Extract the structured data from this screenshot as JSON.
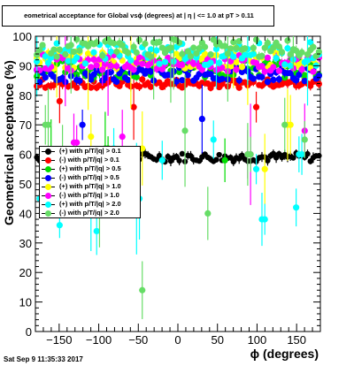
{
  "header": {
    "title": "eometrical acceptance for Global vsϕ (degrees) at | η | <= 1.0 at pT > 0.11"
  },
  "footer": {
    "timestamp": "Sat Sep  9 11:35:33 2017"
  },
  "chart_data": {
    "type": "scatter",
    "title": "eometrical acceptance for Global vsϕ (degrees) at | η | <= 1.0 at pT > 0.11",
    "xlabel": "ϕ (degrees)",
    "ylabel": "Geometrical acceptance (%)",
    "xlim": [
      -180,
      180
    ],
    "ylim": [
      0,
      100
    ],
    "xticks": [
      -150,
      -100,
      -50,
      0,
      50,
      100,
      150
    ],
    "yticks": [
      0,
      10,
      20,
      30,
      40,
      50,
      60,
      70,
      80,
      90,
      100
    ],
    "legend_position": "left",
    "series": [
      {
        "name": "(+) with p/T/|q| > 0.1",
        "color": "#000000",
        "base": 59,
        "spread": 1.5,
        "dips": []
      },
      {
        "name": "(-) with p/T/|q| > 0.1",
        "color": "#ff0000",
        "base": 84,
        "spread": 1.5,
        "dips": [
          [
            -150,
            78
          ],
          [
            -55,
            76
          ],
          [
            100,
            76
          ]
        ]
      },
      {
        "name": "(+) with p/T/|q| > 0.5",
        "color": "#00dd00",
        "base": 89,
        "spread": 3,
        "dips": [
          [
            -160,
            60
          ],
          [
            -90,
            62
          ],
          [
            60,
            58
          ]
        ]
      },
      {
        "name": "(-) with p/T/|q| > 0.5",
        "color": "#0000ff",
        "base": 87,
        "spread": 2.5,
        "dips": [
          [
            -120,
            70
          ],
          [
            30,
            72
          ]
        ]
      },
      {
        "name": "(+) with p/T/|q| > 1.0",
        "color": "#ffff00",
        "base": 92,
        "spread": 3,
        "dips": [
          [
            -110,
            66
          ],
          [
            -45,
            62
          ],
          [
            110,
            55
          ],
          [
            140,
            70
          ]
        ]
      },
      {
        "name": "(-) with p/T/|q| > 1.0",
        "color": "#ff00ff",
        "base": 91,
        "spread": 3,
        "dips": [
          [
            -130,
            64
          ],
          [
            -70,
            66
          ],
          [
            90,
            60
          ],
          [
            160,
            68
          ]
        ]
      },
      {
        "name": "(+) with p/T/|q| > 2.0",
        "color": "#00ffff",
        "base": 94,
        "spread": 4,
        "dips": [
          [
            -175,
            45
          ],
          [
            -150,
            36
          ],
          [
            -110,
            40
          ],
          [
            -102,
            34
          ],
          [
            -80,
            62
          ],
          [
            -50,
            45
          ],
          [
            -20,
            58
          ],
          [
            45,
            65
          ],
          [
            100,
            55
          ],
          [
            108,
            38
          ],
          [
            150,
            42
          ],
          [
            155,
            60
          ]
        ]
      },
      {
        "name": "(-) with p/T/|q| > 2.0",
        "color": "#66dd66",
        "base": 96,
        "spread": 3,
        "dips": [
          [
            -165,
            70
          ],
          [
            -145,
            58
          ],
          [
            -98,
            40
          ],
          [
            -46,
            14
          ],
          [
            -60,
            50
          ],
          [
            10,
            68
          ],
          [
            38,
            40
          ],
          [
            90,
            60
          ],
          [
            135,
            70
          ],
          [
            160,
            65
          ]
        ]
      }
    ]
  }
}
